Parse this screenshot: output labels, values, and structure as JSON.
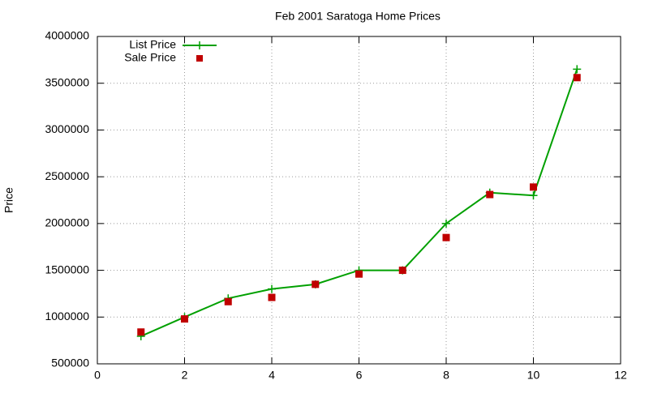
{
  "chart_data": {
    "type": "line",
    "title": "Feb 2001 Saratoga Home Prices",
    "y_label": "Price",
    "x": [
      1,
      2,
      3,
      4,
      5,
      6,
      7,
      8,
      9,
      10,
      11
    ],
    "series": [
      {
        "name": "List Price",
        "color": "#00a000",
        "mode": "linespoints",
        "marker": "plus",
        "values": [
          795000,
          1000000,
          1200000,
          1300000,
          1350000,
          1500000,
          1500000,
          2000000,
          2330000,
          2300000,
          3650000
        ]
      },
      {
        "name": "Sale Price",
        "color": "#c00000",
        "mode": "points",
        "marker": "square",
        "values": [
          840000,
          980000,
          1165000,
          1210000,
          1350000,
          1460000,
          1500000,
          1850000,
          2310000,
          2390000,
          3560000
        ]
      }
    ],
    "xlim": [
      0,
      12
    ],
    "xticks": [
      0,
      2,
      4,
      6,
      8,
      10,
      12
    ],
    "ylim": [
      500000,
      4000000
    ],
    "yticks": [
      500000,
      1000000,
      1500000,
      2000000,
      2500000,
      3000000,
      3500000,
      4000000
    ],
    "grid": true,
    "legend": "top-left"
  }
}
